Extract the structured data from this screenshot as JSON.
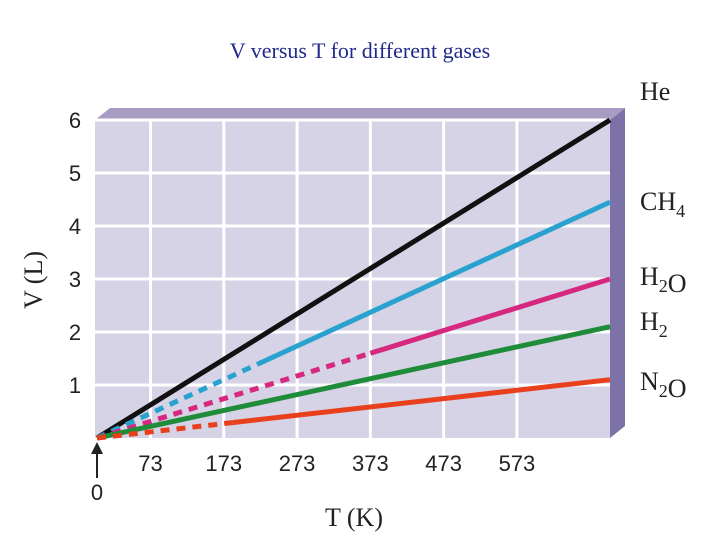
{
  "title": "V versus T for different gases",
  "chart_data": {
    "type": "line",
    "title": "V versus T for different gases",
    "xlabel": "T (K)",
    "ylabel": "V (L)",
    "x_ticks": [
      "73",
      "173",
      "273",
      "373",
      "473",
      "573"
    ],
    "x_origin_label": "0",
    "y_ticks": [
      "1",
      "2",
      "3",
      "4",
      "5",
      "6"
    ],
    "xlim": [
      0,
      700
    ],
    "ylim": [
      0,
      6
    ],
    "grid": true,
    "series": [
      {
        "name": "He",
        "color": "#111111",
        "x": [
          0,
          700
        ],
        "y": [
          0,
          6.0
        ],
        "dashed_until": 0
      },
      {
        "name": "CH4",
        "color": "#2aa2cf",
        "x": [
          0,
          700
        ],
        "y": [
          0,
          4.45
        ],
        "dashed_until": 220
      },
      {
        "name": "H2O",
        "color": "#d5287e",
        "x": [
          0,
          700
        ],
        "y": [
          0,
          3.0
        ],
        "dashed_until": 373
      },
      {
        "name": "H2",
        "color": "#1f8c3a",
        "x": [
          0,
          700
        ],
        "y": [
          0,
          2.1
        ],
        "dashed_until": 0
      },
      {
        "name": "N2O",
        "color": "#e8401c",
        "x": [
          0,
          700
        ],
        "y": [
          0,
          1.1
        ],
        "dashed_until": 185
      }
    ]
  }
}
